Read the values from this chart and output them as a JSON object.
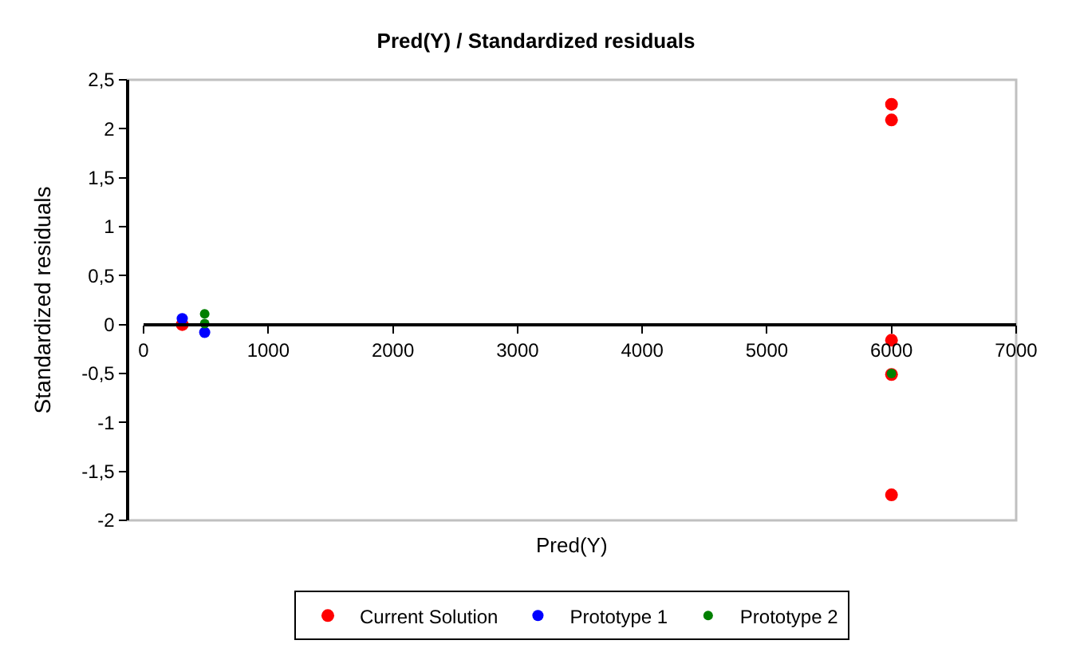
{
  "chart_data": {
    "type": "scatter",
    "title": "Pred(Y) / Standardized residuals",
    "xlabel": "Pred(Y)",
    "ylabel": "Standardized residuals",
    "series": [
      {
        "name": "Current Solution",
        "color": "#ff0000",
        "x": [
          310,
          6000,
          6000,
          6000,
          6000,
          6000
        ],
        "values": [
          0.0,
          2.25,
          2.09,
          -0.16,
          -0.51,
          -1.74
        ]
      },
      {
        "name": "Prototype 1",
        "color": "#0000ff",
        "x": [
          310,
          490
        ],
        "values": [
          0.06,
          -0.08
        ]
      },
      {
        "name": "Prototype 2",
        "color": "#008000",
        "x": [
          490,
          490,
          6000
        ],
        "values": [
          0.11,
          0.01,
          -0.5
        ]
      }
    ],
    "xlim": [
      0,
      7000
    ],
    "xticks": [
      0,
      1000,
      2000,
      3000,
      4000,
      5000,
      6000,
      7000
    ],
    "ylim": [
      -2,
      2.5
    ],
    "yticks": [
      {
        "value": -2,
        "label": "-2"
      },
      {
        "value": -1.5,
        "label": "-1,5"
      },
      {
        "value": -1,
        "label": "-1"
      },
      {
        "value": -0.5,
        "label": "-0,5"
      },
      {
        "value": 0,
        "label": "0"
      },
      {
        "value": 0.5,
        "label": "0,5"
      },
      {
        "value": 1,
        "label": "1"
      },
      {
        "value": 1.5,
        "label": "1,5"
      },
      {
        "value": 2,
        "label": "2"
      },
      {
        "value": 2.5,
        "label": "2,5"
      }
    ],
    "grid": false,
    "legend": "bottom",
    "marker": "circle"
  }
}
